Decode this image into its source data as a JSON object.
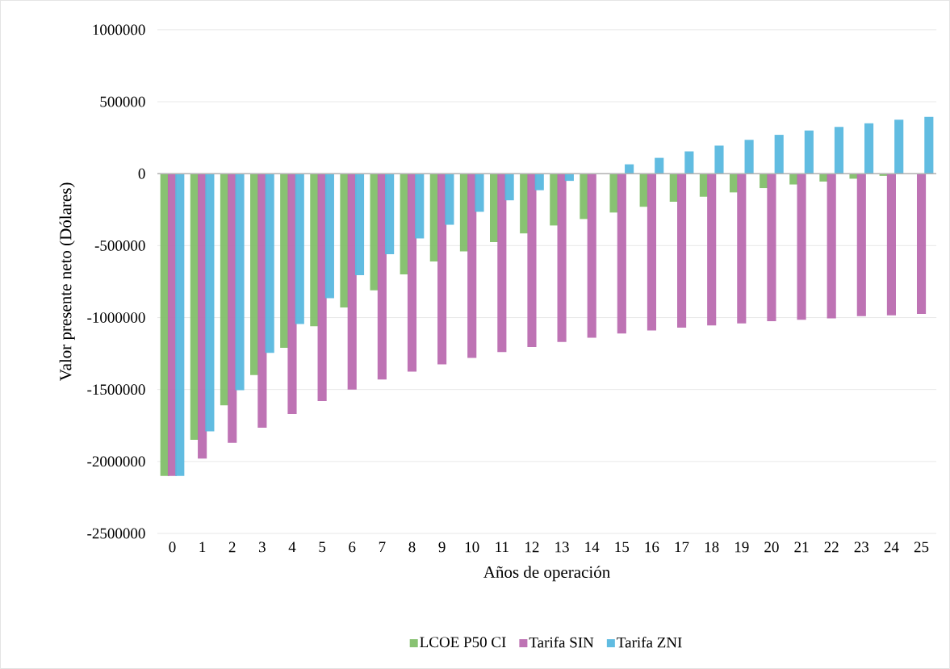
{
  "chart_data": {
    "type": "bar",
    "xlabel": "Años de operación",
    "ylabel": "Valor presente neto (Dólares)",
    "categories": [
      "0",
      "1",
      "2",
      "3",
      "4",
      "5",
      "6",
      "7",
      "8",
      "9",
      "10",
      "11",
      "12",
      "13",
      "14",
      "15",
      "16",
      "17",
      "18",
      "19",
      "20",
      "21",
      "22",
      "23",
      "24",
      "25"
    ],
    "series": [
      {
        "name": "LCOE P50 CI",
        "color": "#82bf6a",
        "values": [
          -2100000,
          -1850000,
          -1610000,
          -1400000,
          -1210000,
          -1060000,
          -930000,
          -810000,
          -700000,
          -610000,
          -540000,
          -475000,
          -415000,
          -360000,
          -315000,
          -270000,
          -230000,
          -195000,
          -160000,
          -130000,
          -100000,
          -75000,
          -55000,
          -35000,
          -15000,
          0
        ]
      },
      {
        "name": "Tarifa SIN",
        "color": "#bb6bb0",
        "values": [
          -2100000,
          -1980000,
          -1870000,
          -1765000,
          -1670000,
          -1580000,
          -1500000,
          -1430000,
          -1375000,
          -1325000,
          -1280000,
          -1240000,
          -1205000,
          -1170000,
          -1140000,
          -1110000,
          -1090000,
          -1070000,
          -1055000,
          -1040000,
          -1025000,
          -1015000,
          -1005000,
          -990000,
          -985000,
          -975000
        ]
      },
      {
        "name": "Tarifa ZNI",
        "color": "#58b8df",
        "values": [
          -2100000,
          -1790000,
          -1505000,
          -1245000,
          -1045000,
          -865000,
          -705000,
          -560000,
          -450000,
          -355000,
          -265000,
          -185000,
          -115000,
          -50000,
          0,
          65000,
          110000,
          155000,
          195000,
          235000,
          270000,
          300000,
          325000,
          350000,
          375000,
          395000
        ]
      }
    ],
    "ylim": [
      -2500000,
      1000000
    ],
    "yticks": [
      -2500000,
      -2000000,
      -1500000,
      -1000000,
      -500000,
      0,
      500000,
      1000000
    ],
    "grid": "y",
    "legend": "bottom"
  }
}
